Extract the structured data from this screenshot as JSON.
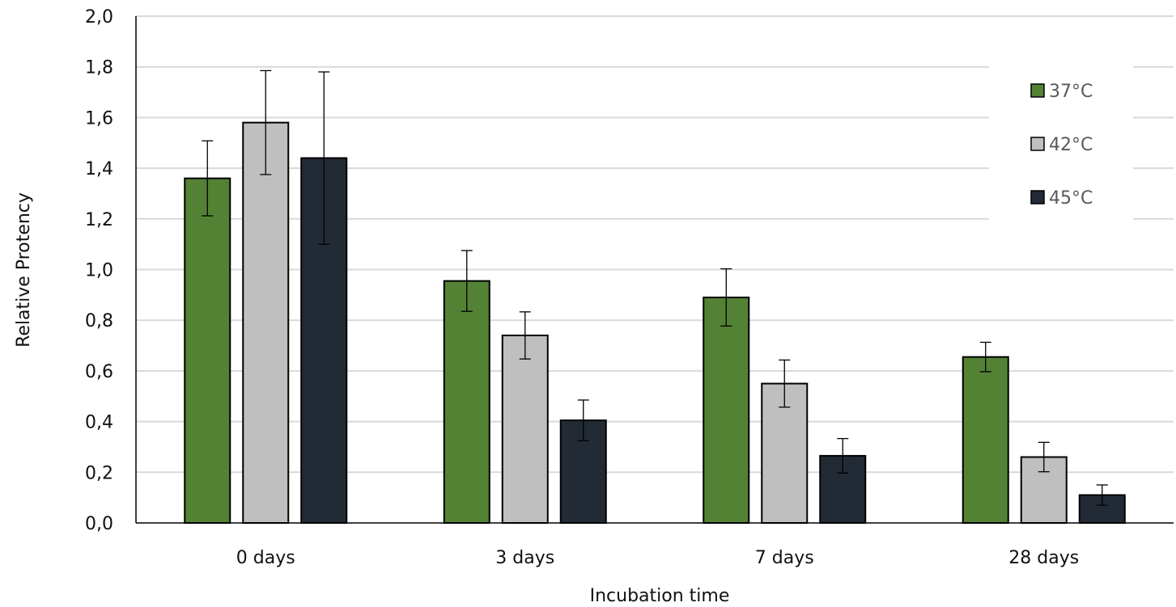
{
  "chart_data": {
    "type": "bar",
    "title": "",
    "xlabel": "Incubation time",
    "ylabel": "Relative Protency",
    "categories": [
      "0 days",
      "3 days",
      "7 days",
      "28 days"
    ],
    "ylim": [
      0,
      2
    ],
    "yticks": [
      0,
      0.2,
      0.4,
      0.6,
      0.8,
      1.0,
      1.2,
      1.4,
      1.6,
      1.8,
      2.0
    ],
    "ytick_labels": [
      "0,0",
      "0,2",
      "0,4",
      "0,6",
      "0,8",
      "1,0",
      "1,2",
      "1,4",
      "1,6",
      "1,8",
      "2,0"
    ],
    "grid": true,
    "legend_position": "right",
    "series": [
      {
        "name": "37°C",
        "color": "#548235",
        "values": [
          1.36,
          0.955,
          0.89,
          0.655
        ],
        "errors": [
          0.148,
          0.12,
          0.113,
          0.058
        ]
      },
      {
        "name": "42°C",
        "color": "#bfbfbf",
        "values": [
          1.58,
          0.74,
          0.55,
          0.26
        ],
        "errors": [
          0.205,
          0.093,
          0.093,
          0.058
        ]
      },
      {
        "name": "45°C",
        "color": "#222a35",
        "values": [
          1.44,
          0.405,
          0.265,
          0.11
        ],
        "errors": [
          0.34,
          0.08,
          0.068,
          0.04
        ]
      }
    ]
  }
}
